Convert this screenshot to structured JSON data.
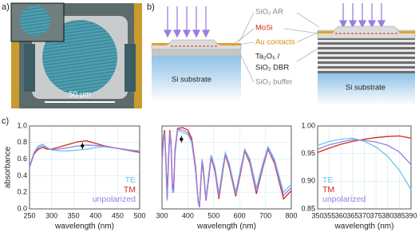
{
  "panels": {
    "a": "a)",
    "b": "b)",
    "c": "c)"
  },
  "micrograph": {
    "scale_bar": "50 µm"
  },
  "diagram": {
    "sio2_ar": "SiO₂ AR",
    "mosi": "MoSi",
    "au_contacts": "Au contacts",
    "ta2o5": "Ta₂O₅ /",
    "sio2_dbr": "SiO₂ DBR",
    "sio2_buffer": "SiO₂ buffer",
    "substrate_left": "Si substrate",
    "substrate_right": "Si substrate"
  },
  "chart_data": [
    {
      "type": "line",
      "xlabel": "wavelength (nm)",
      "ylabel": "absorbance",
      "grid": true,
      "legend": "lower right",
      "xlim": [
        250,
        500
      ],
      "xticks": [
        250,
        300,
        350,
        400,
        450,
        500
      ],
      "ylim": [
        0,
        1
      ],
      "yticks": [
        {
          "value": 0,
          "label": "0.0"
        },
        0.2,
        0.4,
        0.6,
        0.8,
        {
          "value": 1,
          "label": "1.0"
        }
      ],
      "x": [
        250,
        260,
        270,
        280,
        290,
        300,
        320,
        340,
        360,
        380,
        400,
        420,
        450,
        480,
        500
      ],
      "series": [
        {
          "name": "TE",
          "color": "#6cc6e6",
          "values": [
            0.5,
            0.68,
            0.76,
            0.78,
            0.74,
            0.71,
            0.7,
            0.7,
            0.71,
            0.72,
            0.74,
            0.75,
            0.73,
            0.71,
            0.7
          ]
        },
        {
          "name": "TM",
          "color": "#d42a20",
          "values": [
            0.5,
            0.66,
            0.72,
            0.74,
            0.72,
            0.72,
            0.75,
            0.78,
            0.81,
            0.82,
            0.79,
            0.76,
            0.73,
            0.7,
            0.68
          ]
        },
        {
          "name": "unpolarized",
          "color": "#9a7ee2",
          "values": [
            0.5,
            0.67,
            0.74,
            0.76,
            0.73,
            0.715,
            0.725,
            0.74,
            0.76,
            0.77,
            0.765,
            0.755,
            0.73,
            0.705,
            0.69
          ]
        }
      ],
      "marker": {
        "x": 370,
        "y": 0.76,
        "error": 0.04,
        "color": "#111111"
      }
    },
    {
      "type": "line",
      "xlabel": "wavelength (nm)",
      "grid": true,
      "legend": "none",
      "ytick_labels": false,
      "xlim": [
        300,
        800
      ],
      "xticks": [
        300,
        400,
        500,
        600,
        700,
        800
      ],
      "ylim": [
        0,
        1
      ],
      "yticks": [
        0,
        0.2,
        0.4,
        0.6,
        0.8,
        1
      ],
      "x": [
        300,
        305,
        310,
        315,
        320,
        325,
        330,
        335,
        340,
        345,
        350,
        360,
        380,
        400,
        415,
        430,
        440,
        445,
        450,
        455,
        460,
        470,
        480,
        490,
        505,
        520,
        535,
        545,
        560,
        585,
        605,
        620,
        640,
        665,
        690,
        710,
        735,
        770,
        800
      ],
      "series": [
        {
          "name": "TE",
          "color": "#6cc6e6",
          "values": [
            0.55,
            0.8,
            0.9,
            0.55,
            0.1,
            0.55,
            0.9,
            0.75,
            0.2,
            0.2,
            0.65,
            0.95,
            0.92,
            0.9,
            0.8,
            0.45,
            0.08,
            0.02,
            0.35,
            0.6,
            0.5,
            0.12,
            0.4,
            0.65,
            0.5,
            0.18,
            0.5,
            0.68,
            0.55,
            0.2,
            0.5,
            0.72,
            0.6,
            0.25,
            0.55,
            0.75,
            0.6,
            0.2,
            0.3
          ]
        },
        {
          "name": "TM",
          "color": "#d42a20",
          "values": [
            0.55,
            0.85,
            0.95,
            0.6,
            0.15,
            0.6,
            0.95,
            0.8,
            0.3,
            0.25,
            0.7,
            0.97,
            0.98,
            0.95,
            0.85,
            0.5,
            0.1,
            0.02,
            0.3,
            0.56,
            0.45,
            0.1,
            0.35,
            0.62,
            0.45,
            0.12,
            0.45,
            0.65,
            0.5,
            0.15,
            0.45,
            0.7,
            0.55,
            0.18,
            0.5,
            0.72,
            0.55,
            0.12,
            0.22
          ]
        },
        {
          "name": "unpolarized",
          "color": "#9a7ee2",
          "values": [
            0.55,
            0.82,
            0.92,
            0.57,
            0.12,
            0.57,
            0.92,
            0.77,
            0.25,
            0.22,
            0.67,
            0.96,
            0.95,
            0.92,
            0.82,
            0.47,
            0.09,
            0.02,
            0.32,
            0.58,
            0.47,
            0.11,
            0.37,
            0.63,
            0.47,
            0.15,
            0.47,
            0.66,
            0.52,
            0.17,
            0.47,
            0.71,
            0.57,
            0.21,
            0.52,
            0.73,
            0.57,
            0.16,
            0.26
          ]
        }
      ],
      "marker": {
        "x": 375,
        "y": 0.84,
        "error": 0.04,
        "color": "#111111"
      }
    },
    {
      "type": "line",
      "xlabel": "wavelength (nm)",
      "grid": true,
      "legend": "lower left",
      "xlim": [
        350,
        390
      ],
      "xticks": [
        350,
        355,
        360,
        365,
        370,
        375,
        380,
        385,
        390
      ],
      "ylim": [
        0.85,
        1
      ],
      "yticks": [
        0.85,
        {
          "value": 0.9,
          "label": "0.90"
        },
        0.95,
        {
          "value": 1,
          "label": "1.00"
        }
      ],
      "x": [
        350,
        355,
        360,
        365,
        370,
        375,
        380,
        385,
        390
      ],
      "series": [
        {
          "name": "TE",
          "color": "#6cc6e6",
          "values": [
            0.965,
            0.972,
            0.976,
            0.978,
            0.972,
            0.962,
            0.945,
            0.92,
            0.885
          ]
        },
        {
          "name": "TM",
          "color": "#d42a20",
          "values": [
            0.952,
            0.96,
            0.967,
            0.972,
            0.976,
            0.979,
            0.981,
            0.982,
            0.978
          ]
        },
        {
          "name": "unpolarized",
          "color": "#9a7ee2",
          "values": [
            0.958,
            0.966,
            0.971,
            0.975,
            0.974,
            0.971,
            0.965,
            0.953,
            0.93
          ]
        }
      ]
    }
  ]
}
